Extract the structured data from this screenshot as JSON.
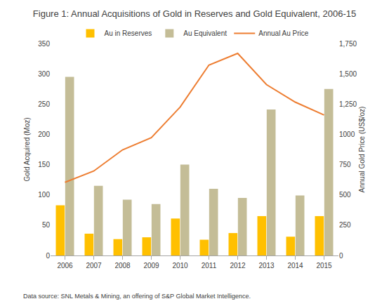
{
  "chart_data": {
    "type": "bar",
    "title": "Figure 1: Annual Acquisitions of Gold in Reserves and Gold Equivalent, 2006-15",
    "y_label": "Gold Acquired (Moz)",
    "y2_label": "Annual Gold Price (US$/oz)",
    "annotations": [
      "Data source: SNL Metals & Mining, an offering of S&P Global Market Intelligence."
    ],
    "categories": [
      "2006",
      "2007",
      "2008",
      "2009",
      "2010",
      "2011",
      "2012",
      "2013",
      "2014",
      "2015"
    ],
    "series": [
      {
        "name": "Au in Reserves",
        "type": "bar",
        "color": "#ffc000",
        "values": [
          83,
          36,
          27,
          30,
          61,
          26,
          37,
          65,
          31,
          65
        ]
      },
      {
        "name": "Au Equivalent",
        "type": "bar",
        "color": "#c4bd97",
        "values": [
          295,
          115,
          92,
          85,
          150,
          110,
          95,
          241,
          99,
          275
        ]
      },
      {
        "name": "Annual Au Price",
        "type": "line",
        "color": "#ed7d31",
        "axis": "y2",
        "values": [
          604,
          697,
          872,
          972,
          1225,
          1572,
          1669,
          1411,
          1266,
          1160
        ]
      }
    ],
    "ylim": [
      0,
      350
    ],
    "yticks": [
      0,
      50,
      100,
      150,
      200,
      250,
      300,
      350
    ],
    "y2lim": [
      0,
      1750
    ],
    "y2ticks": [
      0,
      250,
      500,
      750,
      1000,
      {
        "value": 1250,
        "label": "1,250"
      },
      {
        "value": 1500,
        "label": "1,500"
      },
      {
        "value": 1750,
        "label": "1,750"
      }
    ],
    "grid": false,
    "legend": "top"
  }
}
